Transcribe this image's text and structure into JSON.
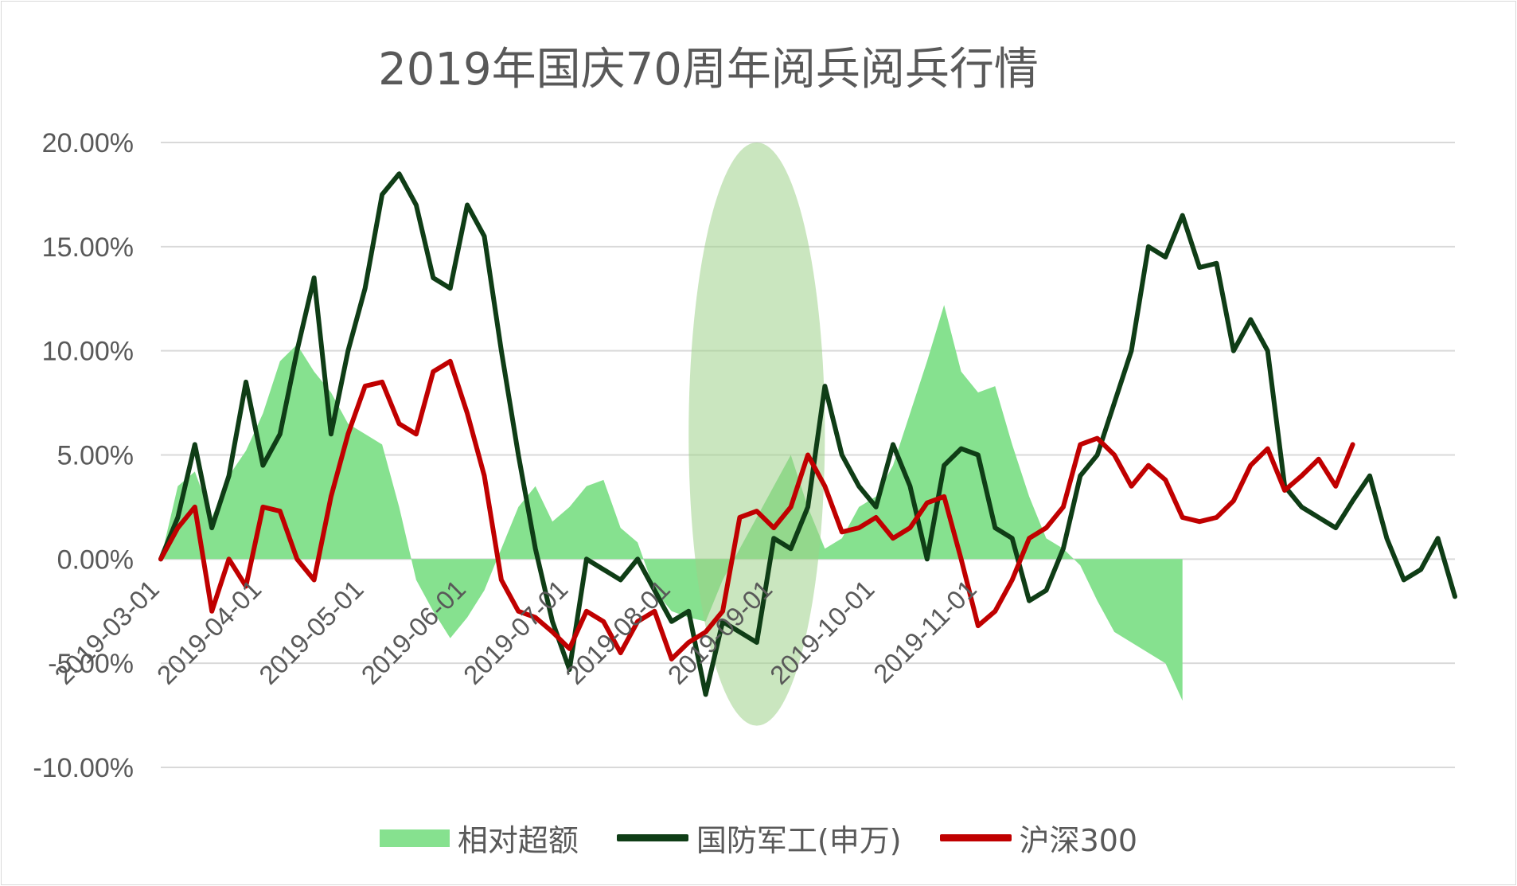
{
  "chart_data": {
    "type": "line",
    "title": "2019年国庆70周年阅兵阅兵行情",
    "xlabel": "",
    "ylabel": "",
    "ylim": [
      -10,
      20
    ],
    "yticks": [
      "20.00%",
      "15.00%",
      "10.00%",
      "5.00%",
      "0.00%",
      "-5.00%",
      "-10.00%"
    ],
    "ytick_values": [
      20,
      15,
      10,
      5,
      0,
      -5,
      -10
    ],
    "x_tick_labels": [
      "2019-03-01",
      "2019-04-01",
      "2019-05-01",
      "2019-06-01",
      "2019-07-01",
      "2019-08-01",
      "2019-09-01",
      "2019-10-01",
      "2019-11-01"
    ],
    "x_tick_index": [
      0,
      30,
      60,
      90,
      120,
      150,
      180,
      210,
      240
    ],
    "grid": "horizontal",
    "legend_position": "bottom",
    "highlight": {
      "type": "ellipse",
      "from_index": 155,
      "to_index": 195,
      "y_range": [
        -8,
        20
      ],
      "color": "#9fd18b"
    },
    "series": [
      {
        "name": "相对超额",
        "kind": "area",
        "color": "#86e18f",
        "points": [
          [
            0,
            0
          ],
          [
            5,
            3.5
          ],
          [
            10,
            4.2
          ],
          [
            15,
            2.0
          ],
          [
            20,
            4.0
          ],
          [
            25,
            5.2
          ],
          [
            30,
            7.0
          ],
          [
            35,
            9.5
          ],
          [
            40,
            10.3
          ],
          [
            45,
            9.0
          ],
          [
            50,
            8.0
          ],
          [
            55,
            6.5
          ],
          [
            60,
            6.0
          ],
          [
            65,
            5.5
          ],
          [
            70,
            2.5
          ],
          [
            75,
            -1.0
          ],
          [
            80,
            -2.5
          ],
          [
            85,
            -3.8
          ],
          [
            90,
            -2.8
          ],
          [
            95,
            -1.5
          ],
          [
            100,
            0.5
          ],
          [
            105,
            2.5
          ],
          [
            110,
            3.5
          ],
          [
            115,
            1.8
          ],
          [
            120,
            2.5
          ],
          [
            125,
            3.5
          ],
          [
            130,
            3.8
          ],
          [
            135,
            1.5
          ],
          [
            140,
            0.8
          ],
          [
            145,
            -1.5
          ],
          [
            150,
            -2.5
          ],
          [
            155,
            -2.8
          ],
          [
            160,
            -3.0
          ],
          [
            165,
            -1.0
          ],
          [
            170,
            0.5
          ],
          [
            175,
            2.0
          ],
          [
            180,
            3.5
          ],
          [
            185,
            5.0
          ],
          [
            190,
            2.5
          ],
          [
            195,
            0.5
          ],
          [
            200,
            1.0
          ],
          [
            205,
            2.5
          ],
          [
            210,
            3.0
          ],
          [
            215,
            4.5
          ],
          [
            220,
            7.0
          ],
          [
            225,
            9.5
          ],
          [
            230,
            12.2
          ],
          [
            235,
            9.0
          ],
          [
            240,
            8.0
          ],
          [
            245,
            8.3
          ],
          [
            250,
            5.5
          ],
          [
            255,
            3.0
          ],
          [
            260,
            1.0
          ],
          [
            265,
            0.5
          ],
          [
            270,
            -0.3
          ],
          [
            275,
            -2.0
          ],
          [
            280,
            -3.5
          ],
          [
            285,
            -4.0
          ],
          [
            290,
            -4.5
          ],
          [
            295,
            -5.0
          ],
          [
            300,
            -6.8
          ]
        ]
      },
      {
        "name": "国防军工(申万)",
        "kind": "line",
        "color": "#0f3d16",
        "points": [
          [
            0,
            0
          ],
          [
            5,
            2.0
          ],
          [
            10,
            5.5
          ],
          [
            15,
            1.5
          ],
          [
            20,
            4.0
          ],
          [
            25,
            8.5
          ],
          [
            30,
            4.5
          ],
          [
            35,
            6.0
          ],
          [
            40,
            10.0
          ],
          [
            45,
            13.5
          ],
          [
            50,
            6.0
          ],
          [
            55,
            10.0
          ],
          [
            60,
            13.0
          ],
          [
            65,
            17.5
          ],
          [
            70,
            18.5
          ],
          [
            75,
            17.0
          ],
          [
            80,
            13.5
          ],
          [
            85,
            13.0
          ],
          [
            90,
            17.0
          ],
          [
            95,
            15.5
          ],
          [
            100,
            10.0
          ],
          [
            105,
            5.0
          ],
          [
            110,
            0.5
          ],
          [
            115,
            -3.0
          ],
          [
            120,
            -5.3
          ],
          [
            125,
            0.0
          ],
          [
            130,
            -0.5
          ],
          [
            135,
            -1.0
          ],
          [
            140,
            0.0
          ],
          [
            145,
            -1.5
          ],
          [
            150,
            -3.0
          ],
          [
            155,
            -2.5
          ],
          [
            160,
            -6.5
          ],
          [
            165,
            -3.0
          ],
          [
            170,
            -3.5
          ],
          [
            175,
            -4.0
          ],
          [
            180,
            1.0
          ],
          [
            185,
            0.5
          ],
          [
            190,
            2.5
          ],
          [
            195,
            8.3
          ],
          [
            200,
            5.0
          ],
          [
            205,
            3.5
          ],
          [
            210,
            2.5
          ],
          [
            215,
            5.5
          ],
          [
            220,
            3.5
          ],
          [
            225,
            0.0
          ],
          [
            230,
            4.5
          ],
          [
            235,
            5.3
          ],
          [
            240,
            5.0
          ],
          [
            245,
            1.5
          ],
          [
            250,
            1.0
          ],
          [
            255,
            -2.0
          ],
          [
            260,
            -1.5
          ],
          [
            265,
            0.5
          ],
          [
            270,
            4.0
          ],
          [
            275,
            5.0
          ],
          [
            280,
            7.5
          ],
          [
            285,
            10.0
          ],
          [
            290,
            15.0
          ],
          [
            295,
            14.5
          ],
          [
            300,
            16.5
          ],
          [
            305,
            14.0
          ],
          [
            310,
            14.2
          ],
          [
            315,
            10.0
          ],
          [
            320,
            11.5
          ],
          [
            325,
            10.0
          ],
          [
            330,
            3.5
          ],
          [
            335,
            2.5
          ],
          [
            340,
            2.0
          ],
          [
            345,
            1.5
          ],
          [
            350,
            2.8
          ],
          [
            355,
            4.0
          ],
          [
            360,
            1.0
          ],
          [
            365,
            -1.0
          ],
          [
            370,
            -0.5
          ],
          [
            375,
            1.0
          ],
          [
            380,
            -1.8
          ]
        ]
      },
      {
        "name": "沪深300",
        "kind": "line",
        "color": "#c00000",
        "points": [
          [
            0,
            0
          ],
          [
            5,
            1.5
          ],
          [
            10,
            2.5
          ],
          [
            15,
            -2.5
          ],
          [
            20,
            0.0
          ],
          [
            25,
            -1.3
          ],
          [
            30,
            2.5
          ],
          [
            35,
            2.3
          ],
          [
            40,
            0.0
          ],
          [
            45,
            -1.0
          ],
          [
            50,
            3.0
          ],
          [
            55,
            6.0
          ],
          [
            60,
            8.3
          ],
          [
            65,
            8.5
          ],
          [
            70,
            6.5
          ],
          [
            75,
            6.0
          ],
          [
            80,
            9.0
          ],
          [
            85,
            9.5
          ],
          [
            90,
            7.0
          ],
          [
            95,
            4.0
          ],
          [
            100,
            -1.0
          ],
          [
            105,
            -2.5
          ],
          [
            110,
            -2.8
          ],
          [
            115,
            -3.5
          ],
          [
            120,
            -4.3
          ],
          [
            125,
            -2.5
          ],
          [
            130,
            -3.0
          ],
          [
            135,
            -4.5
          ],
          [
            140,
            -3.0
          ],
          [
            145,
            -2.5
          ],
          [
            150,
            -4.8
          ],
          [
            155,
            -4.0
          ],
          [
            160,
            -3.5
          ],
          [
            165,
            -2.5
          ],
          [
            170,
            2.0
          ],
          [
            175,
            2.3
          ],
          [
            180,
            1.5
          ],
          [
            185,
            2.5
          ],
          [
            190,
            5.0
          ],
          [
            195,
            3.5
          ],
          [
            200,
            1.3
          ],
          [
            205,
            1.5
          ],
          [
            210,
            2.0
          ],
          [
            215,
            1.0
          ],
          [
            220,
            1.5
          ],
          [
            225,
            2.7
          ],
          [
            230,
            3.0
          ],
          [
            235,
            0.0
          ],
          [
            240,
            -3.2
          ],
          [
            245,
            -2.5
          ],
          [
            250,
            -1.0
          ],
          [
            255,
            1.0
          ],
          [
            260,
            1.5
          ],
          [
            265,
            2.5
          ],
          [
            270,
            5.5
          ],
          [
            275,
            5.8
          ],
          [
            280,
            5.0
          ],
          [
            285,
            3.5
          ],
          [
            290,
            4.5
          ],
          [
            295,
            3.8
          ],
          [
            300,
            2.0
          ],
          [
            305,
            1.8
          ],
          [
            310,
            2.0
          ],
          [
            315,
            2.8
          ],
          [
            320,
            4.5
          ],
          [
            325,
            5.3
          ],
          [
            330,
            3.3
          ],
          [
            335,
            4.0
          ],
          [
            340,
            4.8
          ],
          [
            345,
            3.5
          ],
          [
            350,
            5.5
          ]
        ]
      }
    ]
  }
}
